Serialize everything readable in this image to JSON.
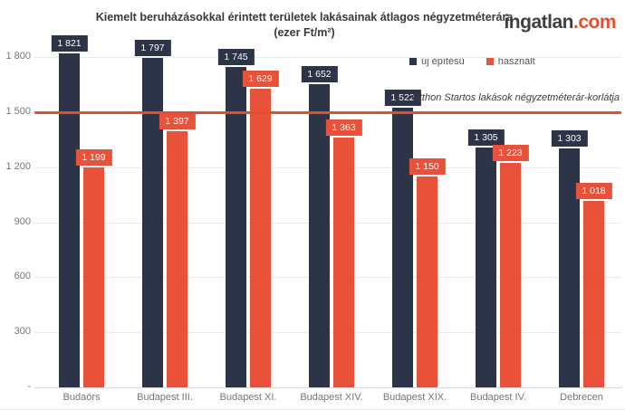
{
  "header": {
    "title_line1": "Kiemelt beruházásokkal érintett területek lakásainak átlagos négyzetméterára",
    "title_line2": "(ezer Ft/m²)",
    "logo_text": "ingatlan",
    "logo_suffix": ".com"
  },
  "colors": {
    "new_build": "#2d3448",
    "used": "#e8523a",
    "reference_line": "#e0502e",
    "logo_accent": "#e4502d",
    "grid": "#e9e9e9",
    "text_muted": "#767676"
  },
  "chart_data": {
    "type": "bar",
    "title": "Kiemelt beruházásokkal érintett területek lakásainak átlagos négyzetméterára (ezer Ft/m²)",
    "categories": [
      "Budaörs",
      "Budapest III.",
      "Budapest XI.",
      "Budapest XIV.",
      "Budapest XIX.",
      "Budapest IV.",
      "Debrecen"
    ],
    "series": [
      {
        "name": "új építésű",
        "color": "#2d3448",
        "values": [
          1821,
          1797,
          1745,
          1652,
          1522,
          1305,
          1303
        ]
      },
      {
        "name": "használt",
        "color": "#e8523a",
        "values": [
          1199,
          1397,
          1629,
          1363,
          1150,
          1223,
          1018
        ]
      }
    ],
    "xlabel": "",
    "ylabel": "",
    "yticks": [
      0,
      300,
      600,
      900,
      1200,
      1500,
      1800
    ],
    "ytick_labels": [
      "-",
      "300",
      "600",
      "900",
      "1 200",
      "1 500",
      "1 800"
    ],
    "ylim": [
      0,
      1870
    ],
    "grid": true,
    "legend_position": "top-right",
    "data_labels": true,
    "reference_line": {
      "value": 1500,
      "label": "Otthon Startos lakások négyzetméterár-korlátja",
      "color": "#e0502e"
    }
  },
  "legend": [
    {
      "label": "új építésű",
      "color": "#2d3448"
    },
    {
      "label": "használt",
      "color": "#e8523a"
    }
  ]
}
